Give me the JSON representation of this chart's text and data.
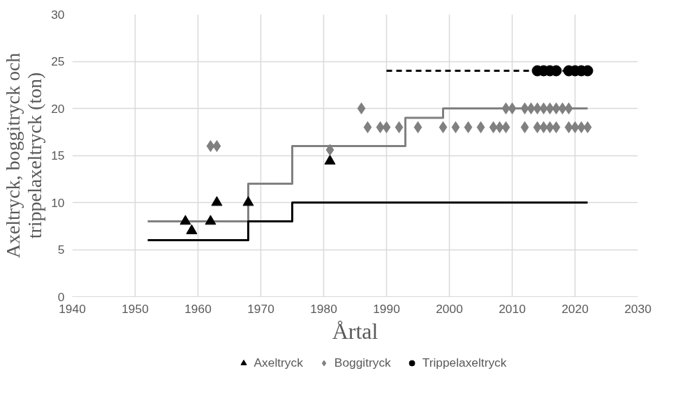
{
  "chart_data": {
    "type": "scatter",
    "xlabel": "Årtal",
    "ylabel": "Axeltryck, boggitryck och trippelaxeltryck (ton)",
    "xlim": [
      1940,
      2030
    ],
    "ylim": [
      0,
      30
    ],
    "xticks": [
      1940,
      1950,
      1960,
      1970,
      1980,
      1990,
      2000,
      2010,
      2020,
      2030
    ],
    "yticks": [
      0,
      5,
      10,
      15,
      20,
      25,
      30
    ],
    "grid": true,
    "legend": "bottom",
    "series": [
      {
        "type": "step",
        "color": "#808080",
        "x": [
          1952,
          1968,
          1975,
          1993,
          1999,
          2022
        ],
        "values": [
          8,
          12,
          16,
          19,
          20,
          20
        ],
        "line_style": "solid",
        "marker": "none"
      },
      {
        "type": "step",
        "color": "#000000",
        "x": [
          1952,
          1968,
          1975,
          2022
        ],
        "values": [
          6,
          8,
          10,
          10
        ],
        "line_style": "solid",
        "marker": "none"
      },
      {
        "type": "line",
        "color": "#000000",
        "x": [
          1990,
          2022
        ],
        "values": [
          24,
          24
        ],
        "line_style": "dashed",
        "marker": "none"
      },
      {
        "name": "Axeltryck",
        "type": "scatter",
        "color": "#000000",
        "marker": "triangle",
        "x": [
          1958,
          1959,
          1962,
          1963,
          1968,
          1981
        ],
        "values": [
          8,
          7,
          8,
          10,
          10,
          14.4
        ]
      },
      {
        "name": "Boggitryck",
        "type": "scatter",
        "color": "#808080",
        "marker": "diamond",
        "x": [
          1962,
          1963,
          1981,
          1986,
          1987,
          1989,
          1990,
          1992,
          1995,
          1999,
          2001,
          2003,
          2005,
          2007,
          2008,
          2009,
          2012,
          2014,
          2015,
          2016,
          2017,
          2019,
          2020,
          2021,
          2022,
          2009,
          2010,
          2012,
          2013,
          2014,
          2015,
          2016,
          2017,
          2018,
          2019
        ],
        "values": [
          16,
          16,
          15.6,
          20,
          18,
          18,
          18,
          18,
          18,
          18,
          18,
          18,
          18,
          18,
          18,
          18,
          18,
          18,
          18,
          18,
          18,
          18,
          18,
          18,
          18,
          20,
          20,
          20,
          20,
          20,
          20,
          20,
          20,
          20,
          20
        ]
      },
      {
        "name": "Trippelaxeltryck",
        "type": "scatter",
        "color": "#000000",
        "marker": "circle",
        "x": [
          2014,
          2015,
          2016,
          2017,
          2019,
          2020,
          2021,
          2022
        ],
        "values": [
          24,
          24,
          24,
          24,
          24,
          24,
          24,
          24
        ]
      }
    ]
  }
}
